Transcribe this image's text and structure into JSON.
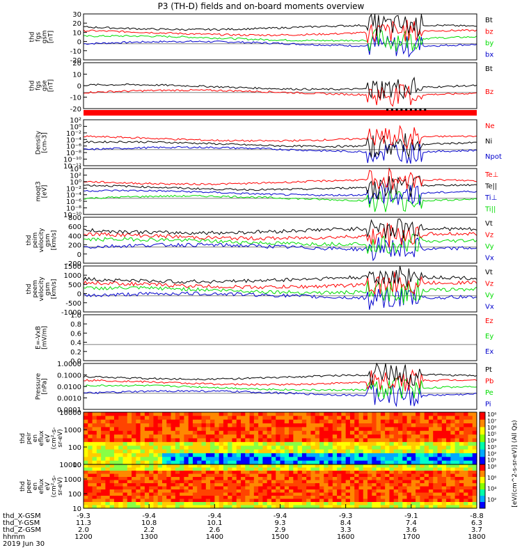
{
  "title": "P3 (TH-D) fields and on-board moments overview",
  "colors": {
    "black": "#000000",
    "red": "#ff0000",
    "green": "#00dd00",
    "blue": "#0000cc"
  },
  "chart_data": [
    {
      "type": "line",
      "name": "fgs_gsm",
      "ylabel_lines": [
        "thd",
        "fgs",
        "gsm",
        "[nT]"
      ],
      "yticks": [
        "30",
        "20",
        "10",
        "0",
        "-10",
        "-20"
      ],
      "legend": [
        {
          "label": "Bt",
          "color": "black"
        },
        {
          "label": "bz",
          "color": "red"
        },
        {
          "label": "by",
          "color": "green"
        },
        {
          "label": "bx",
          "color": "blue"
        }
      ]
    },
    {
      "type": "line",
      "name": "fgs_gse",
      "ylabel_lines": [
        "thd",
        "fgs",
        "gse",
        "[nT]"
      ],
      "yticks": [
        "20",
        "10",
        "0",
        "-10",
        "-20"
      ],
      "legend": [
        {
          "label": "Bt",
          "color": "black"
        },
        {
          "label": "Bz",
          "color": "red"
        }
      ]
    },
    {
      "type": "bar",
      "name": "mode_bar",
      "legend": []
    },
    {
      "type": "line",
      "name": "density",
      "ylabel_lines": [
        "Density",
        "[cm-3]"
      ],
      "yticks": [
        "10²",
        "10⁰",
        "10⁻²",
        "10⁻⁴",
        "10⁻⁶",
        "10⁻⁸",
        "10⁻¹⁰",
        "10⁻¹²"
      ],
      "legend": [
        {
          "label": "Ne",
          "color": "red"
        },
        {
          "label": "Ni",
          "color": "black"
        },
        {
          "label": "Npot",
          "color": "blue"
        }
      ]
    },
    {
      "type": "line",
      "name": "temperature",
      "ylabel_lines": [
        "moqt3",
        "[eV]"
      ],
      "yticks": [
        "10⁴",
        "10²",
        "10⁰",
        "10⁻²",
        "10⁻⁴",
        "10⁻⁶",
        "10⁻⁸",
        "10⁻¹⁰"
      ],
      "legend": [
        {
          "label": "Te⊥",
          "color": "red"
        },
        {
          "label": "Te||",
          "color": "black"
        },
        {
          "label": "Ti⊥",
          "color": "blue"
        },
        {
          "label": "Ti||",
          "color": "green"
        }
      ]
    },
    {
      "type": "line",
      "name": "peim_velocity",
      "ylabel_lines": [
        "thd",
        "peim",
        "velocity",
        "gsm",
        "[km/s]"
      ],
      "yticks": [
        "800",
        "600",
        "400",
        "200",
        "0",
        "-200"
      ],
      "legend": [
        {
          "label": "Vt",
          "color": "black"
        },
        {
          "label": "Vz",
          "color": "red"
        },
        {
          "label": "Vy",
          "color": "green"
        },
        {
          "label": "Vx",
          "color": "blue"
        }
      ]
    },
    {
      "type": "line",
      "name": "peem_velocity",
      "ylabel_lines": [
        "thd",
        "peem",
        "velocity",
        "gsm",
        "[km/s]"
      ],
      "yticks": [
        "1500",
        "1000",
        "500",
        "0",
        "-500",
        "-1000"
      ],
      "legend": [
        {
          "label": "Vt",
          "color": "black"
        },
        {
          "label": "Vz",
          "color": "red"
        },
        {
          "label": "Vy",
          "color": "green"
        },
        {
          "label": "Vx",
          "color": "blue"
        }
      ]
    },
    {
      "type": "line",
      "name": "efield",
      "ylabel_lines": [
        "E=-VxB",
        "[mV/m]"
      ],
      "yticks": [
        "1.0",
        "0.8",
        "0.6",
        "0.4",
        "0.2",
        "0.0"
      ],
      "legend": [
        {
          "label": "Ez",
          "color": "red"
        },
        {
          "label": "Ey",
          "color": "green"
        },
        {
          "label": "Ex",
          "color": "blue"
        }
      ]
    },
    {
      "type": "line",
      "name": "pressure",
      "ylabel_lines": [
        "Pressure",
        "[nPa]"
      ],
      "yticks": [
        "1.0000",
        "0.1000",
        "0.0100",
        "0.0010",
        "0.0001"
      ],
      "legend": [
        {
          "label": "Pt",
          "color": "black"
        },
        {
          "label": "Pb",
          "color": "red"
        },
        {
          "label": "Pe",
          "color": "green"
        },
        {
          "label": "Pi",
          "color": "blue"
        }
      ]
    },
    {
      "type": "heatmap",
      "name": "peir_spectrogram",
      "ylabel_lines": [
        "thd",
        "peir",
        "en",
        "eflux",
        "eV",
        "(cm²-s-",
        "sr-eV)"
      ],
      "yticks": [
        "10000",
        "1000",
        "100",
        "10"
      ],
      "legend": []
    },
    {
      "type": "heatmap",
      "name": "peer_spectrogram",
      "ylabel_lines": [
        "thd",
        "peer",
        "en",
        "eflux",
        "eV",
        "(cm²-s-",
        "sr-eV)"
      ],
      "yticks": [
        "10000",
        "1000",
        "100",
        "10"
      ],
      "legend": []
    }
  ],
  "colorbars": [
    {
      "ticks": [
        "10⁸",
        "10⁷",
        "10⁶",
        "10⁵",
        "10⁴",
        "10³",
        "10²",
        "10¹"
      ]
    },
    {
      "ticks": [
        "10⁸",
        "10⁶",
        "10⁴",
        "10²"
      ]
    }
  ],
  "colorbar_label": "[eV/(cm^2-s-sr-eV)] (All Qs)",
  "time_axis": {
    "row_labels": [
      "thd_X-GSM",
      "thd_Y-GSM",
      "thd_Z-GSM",
      "hhmm",
      "2019 Jun 30"
    ],
    "columns": [
      [
        "-9.3",
        "11.3",
        "2.0",
        "1200"
      ],
      [
        "-9.4",
        "10.8",
        "2.2",
        "1300"
      ],
      [
        "-9.4",
        "10.1",
        "2.6",
        "1400"
      ],
      [
        "-9.4",
        "9.3",
        "2.9",
        "1500"
      ],
      [
        "-9.3",
        "8.4",
        "3.3",
        "1600"
      ],
      [
        "-9.1",
        "7.4",
        "3.6",
        "1700"
      ],
      [
        "-8.8",
        "6.3",
        "3.7",
        "1800"
      ]
    ]
  }
}
